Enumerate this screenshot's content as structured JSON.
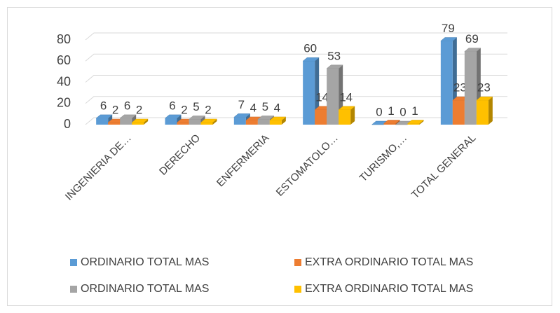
{
  "chart_data": {
    "type": "bar3d",
    "categories": [
      "INGENIERIA DE…",
      "DERECHO",
      "ENFERMERIA",
      "ESTOMATOLO…",
      "TURISMO,…",
      "TOTAL GENERAL"
    ],
    "series": [
      {
        "name": "ORDINARIO TOTAL MAS",
        "color": "#5b9bd5",
        "values": [
          6,
          6,
          7,
          60,
          0,
          79
        ]
      },
      {
        "name": "EXTRA ORDINARIO TOTAL MAS",
        "color": "#ed7d31",
        "values": [
          2,
          2,
          4,
          14,
          1,
          23
        ]
      },
      {
        "name": "ORDINARIO TOTAL MAS",
        "color": "#a5a5a5",
        "values": [
          6,
          5,
          5,
          53,
          0,
          69
        ]
      },
      {
        "name": "EXTRA ORDINARIO TOTAL MAS",
        "color": "#ffc000",
        "values": [
          2,
          2,
          4,
          14,
          1,
          23
        ]
      }
    ],
    "ylim": [
      0,
      80
    ],
    "yticks": [
      0,
      20,
      40,
      60,
      80
    ],
    "grid": true,
    "legend": "bottom"
  }
}
